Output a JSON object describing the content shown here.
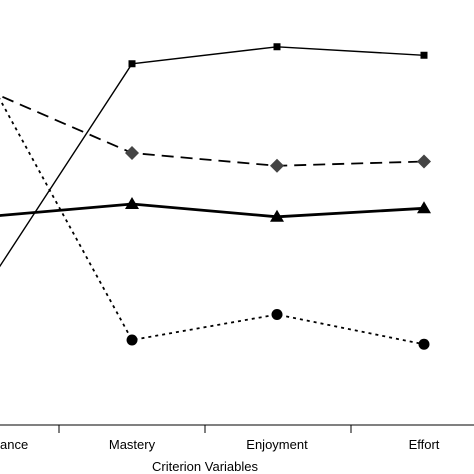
{
  "chart_data": {
    "type": "line",
    "categories": [
      "Performance",
      "Mastery",
      "Enjoyment",
      "Effort"
    ],
    "tick_labels": [
      "ance",
      "Mastery",
      "Enjoyment",
      "Effort"
    ],
    "xlabel": "Criterion Variables",
    "ylabel": "",
    "ylim": [
      0,
      100
    ],
    "grid": false,
    "legend": "none",
    "series": [
      {
        "marker": "square",
        "line": "thin-solid",
        "color": "#000000",
        "values": [
          32,
          85,
          89,
          87
        ]
      },
      {
        "marker": "diamond",
        "line": "dashed",
        "color": "#000000",
        "values": [
          79,
          64,
          61,
          62
        ]
      },
      {
        "marker": "triangle",
        "line": "thick-solid",
        "color": "#000000",
        "values": [
          49,
          52,
          49,
          51
        ]
      },
      {
        "marker": "circle",
        "line": "dotted",
        "color": "#000000",
        "values": [
          83,
          20,
          26,
          19
        ]
      }
    ]
  }
}
